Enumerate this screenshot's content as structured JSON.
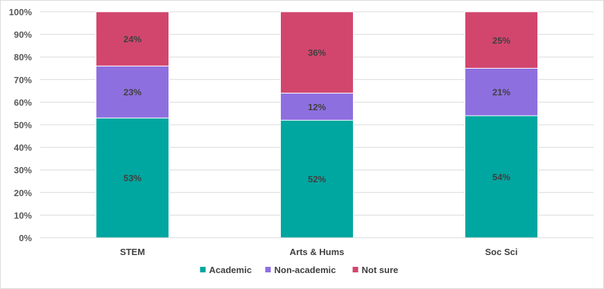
{
  "chart_data": {
    "type": "bar",
    "stacked": true,
    "categories": [
      "STEM",
      "Arts & Hums",
      "Soc Sci"
    ],
    "series": [
      {
        "name": "Academic",
        "values": [
          53,
          52,
          54
        ],
        "labels": [
          "53%",
          "52%",
          "54%"
        ],
        "color": "#00a6a0"
      },
      {
        "name": "Non-academic",
        "values": [
          23,
          12,
          21
        ],
        "labels": [
          "23%",
          "12%",
          "21%"
        ],
        "color": "#8e6fe0"
      },
      {
        "name": "Not sure",
        "values": [
          24,
          36,
          25
        ],
        "labels": [
          "24%",
          "36%",
          "25%"
        ],
        "color": "#d2466e"
      }
    ],
    "yticks": [
      "0%",
      "10%",
      "20%",
      "30%",
      "40%",
      "50%",
      "60%",
      "70%",
      "80%",
      "90%",
      "100%"
    ],
    "ylim": [
      0,
      100
    ],
    "title": "",
    "xlabel": "",
    "ylabel": "",
    "grid": true,
    "legend_position": "bottom",
    "gridline_color": "#d9d9d9"
  }
}
